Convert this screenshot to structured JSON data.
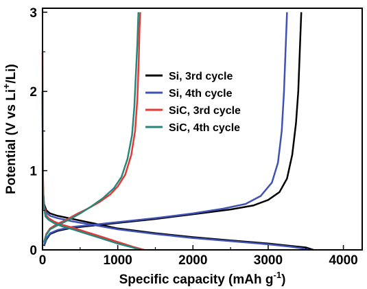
{
  "chart_data": {
    "type": "line",
    "xlabel": "Specific capacity (mAh g",
    "xlabel_sup": "-1",
    "xlabel_end": ")",
    "ylabel": "Potential (V vs Li",
    "ylabel_sup": "+",
    "ylabel_end": "/Li)",
    "xlim": [
      0,
      4250
    ],
    "ylim": [
      0,
      3.05
    ],
    "xticks": [
      0,
      1000,
      2000,
      3000,
      4000
    ],
    "yticks": [
      0,
      1,
      2,
      3
    ],
    "legend_position": "center",
    "series": [
      {
        "name": "Si, 3rd cycle",
        "color": "#000000",
        "charge": [
          [
            20,
            0.05
          ],
          [
            50,
            0.13
          ],
          [
            100,
            0.2
          ],
          [
            200,
            0.24
          ],
          [
            400,
            0.28
          ],
          [
            700,
            0.31
          ],
          [
            1000,
            0.34
          ],
          [
            1500,
            0.39
          ],
          [
            2000,
            0.45
          ],
          [
            2500,
            0.51
          ],
          [
            2800,
            0.56
          ],
          [
            3000,
            0.63
          ],
          [
            3150,
            0.73
          ],
          [
            3250,
            0.9
          ],
          [
            3320,
            1.2
          ],
          [
            3370,
            1.6
          ],
          [
            3400,
            2.0
          ],
          [
            3420,
            2.5
          ],
          [
            3440,
            3.0
          ]
        ],
        "discharge": [
          [
            0,
            2.0
          ],
          [
            5,
            0.8
          ],
          [
            20,
            0.58
          ],
          [
            50,
            0.5
          ],
          [
            100,
            0.46
          ],
          [
            200,
            0.43
          ],
          [
            400,
            0.39
          ],
          [
            700,
            0.33
          ],
          [
            1000,
            0.27
          ],
          [
            1500,
            0.21
          ],
          [
            2000,
            0.16
          ],
          [
            2500,
            0.12
          ],
          [
            3000,
            0.08
          ],
          [
            3300,
            0.05
          ],
          [
            3500,
            0.03
          ],
          [
            3600,
            0.0
          ]
        ]
      },
      {
        "name": "Si, 4th cycle",
        "color": "#3f51b5",
        "charge": [
          [
            20,
            0.06
          ],
          [
            50,
            0.14
          ],
          [
            100,
            0.21
          ],
          [
            200,
            0.25
          ],
          [
            400,
            0.29
          ],
          [
            700,
            0.32
          ],
          [
            1000,
            0.35
          ],
          [
            1500,
            0.4
          ],
          [
            2000,
            0.46
          ],
          [
            2400,
            0.52
          ],
          [
            2700,
            0.58
          ],
          [
            2900,
            0.68
          ],
          [
            3050,
            0.85
          ],
          [
            3130,
            1.1
          ],
          [
            3180,
            1.5
          ],
          [
            3210,
            2.0
          ],
          [
            3230,
            2.5
          ],
          [
            3250,
            3.0
          ]
        ],
        "discharge": [
          [
            0,
            2.0
          ],
          [
            5,
            0.8
          ],
          [
            20,
            0.55
          ],
          [
            50,
            0.47
          ],
          [
            100,
            0.43
          ],
          [
            200,
            0.4
          ],
          [
            400,
            0.36
          ],
          [
            700,
            0.31
          ],
          [
            1000,
            0.26
          ],
          [
            1500,
            0.2
          ],
          [
            2000,
            0.15
          ],
          [
            2500,
            0.11
          ],
          [
            3000,
            0.07
          ],
          [
            3300,
            0.04
          ],
          [
            3450,
            0.02
          ],
          [
            3550,
            0.0
          ]
        ]
      },
      {
        "name": "SiC, 3rd cycle",
        "color": "#e53935",
        "charge": [
          [
            20,
            0.1
          ],
          [
            50,
            0.2
          ],
          [
            100,
            0.27
          ],
          [
            200,
            0.33
          ],
          [
            300,
            0.37
          ],
          [
            450,
            0.45
          ],
          [
            600,
            0.52
          ],
          [
            750,
            0.6
          ],
          [
            900,
            0.7
          ],
          [
            1000,
            0.8
          ],
          [
            1100,
            0.95
          ],
          [
            1180,
            1.2
          ],
          [
            1230,
            1.5
          ],
          [
            1260,
            1.9
          ],
          [
            1280,
            2.4
          ],
          [
            1290,
            2.8
          ],
          [
            1300,
            3.0
          ]
        ],
        "discharge": [
          [
            0,
            2.5
          ],
          [
            5,
            1.0
          ],
          [
            15,
            0.6
          ],
          [
            40,
            0.45
          ],
          [
            80,
            0.4
          ],
          [
            150,
            0.36
          ],
          [
            250,
            0.32
          ],
          [
            400,
            0.28
          ],
          [
            600,
            0.22
          ],
          [
            800,
            0.16
          ],
          [
            1000,
            0.1
          ],
          [
            1200,
            0.04
          ],
          [
            1350,
            0.0
          ]
        ]
      },
      {
        "name": "SiC, 4th cycle",
        "color": "#26867a",
        "charge": [
          [
            20,
            0.09
          ],
          [
            50,
            0.19
          ],
          [
            100,
            0.26
          ],
          [
            200,
            0.31
          ],
          [
            350,
            0.38
          ],
          [
            500,
            0.46
          ],
          [
            650,
            0.55
          ],
          [
            800,
            0.65
          ],
          [
            950,
            0.78
          ],
          [
            1050,
            0.92
          ],
          [
            1130,
            1.15
          ],
          [
            1190,
            1.45
          ],
          [
            1220,
            1.8
          ],
          [
            1240,
            2.2
          ],
          [
            1260,
            2.6
          ],
          [
            1275,
            3.0
          ]
        ],
        "discharge": [
          [
            0,
            2.0
          ],
          [
            5,
            0.9
          ],
          [
            15,
            0.55
          ],
          [
            40,
            0.42
          ],
          [
            80,
            0.38
          ],
          [
            150,
            0.34
          ],
          [
            250,
            0.3
          ],
          [
            400,
            0.26
          ],
          [
            600,
            0.2
          ],
          [
            800,
            0.14
          ],
          [
            1000,
            0.08
          ],
          [
            1200,
            0.03
          ],
          [
            1300,
            0.0
          ]
        ]
      }
    ]
  }
}
